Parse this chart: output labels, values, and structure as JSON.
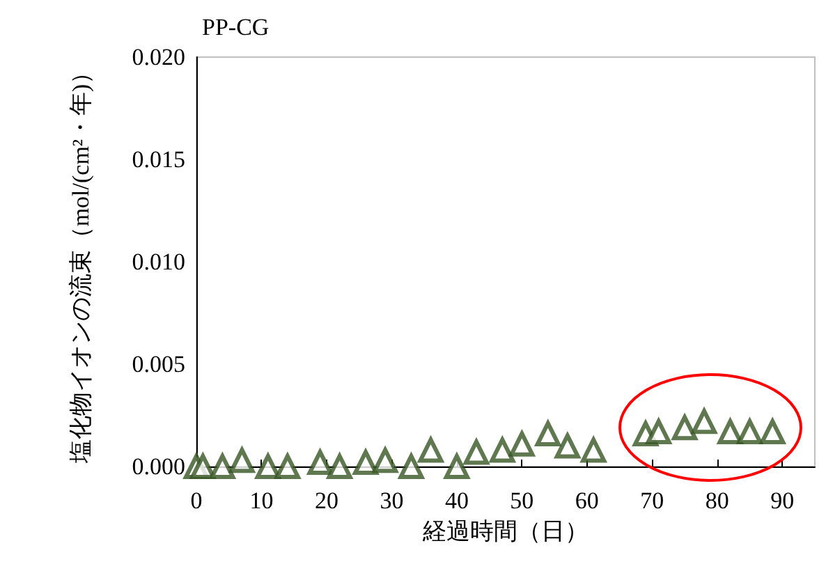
{
  "chart_data": {
    "type": "scatter",
    "title": "PP-CG",
    "xlabel": "経過時間（日）",
    "ylabel": "塩化物イオンの流束（mol/(cm²・年)）",
    "xlim": [
      0,
      95
    ],
    "xticks": [
      0,
      10,
      20,
      30,
      40,
      50,
      60,
      70,
      80,
      90
    ],
    "ylim": [
      0,
      0.02
    ],
    "yticks": [
      {
        "value": 0,
        "label": "0.000"
      },
      0.005,
      {
        "value": 0.01,
        "label": "0.010"
      },
      0.015,
      {
        "value": 0.02,
        "label": "0.020"
      }
    ],
    "grid": false,
    "marker": "triangle",
    "series": [
      {
        "color": "#375623",
        "x": [
          0,
          1,
          4,
          7,
          11,
          14,
          19,
          22,
          26,
          29,
          33,
          36,
          40,
          43,
          47,
          50,
          54,
          57,
          61,
          69,
          71,
          75,
          78,
          82,
          85,
          88.5
        ],
        "values": [
          0,
          0,
          0,
          0.0003,
          0,
          0,
          0.0002,
          0,
          0.0002,
          0.0003,
          0,
          0.0008,
          0,
          0.0007,
          0.0008,
          0.0011,
          0.0016,
          0.001,
          0.0008,
          0.0016,
          0.0017,
          0.0019,
          0.0022,
          0.0017,
          0.0017,
          0.0017
        ]
      }
    ]
  }
}
